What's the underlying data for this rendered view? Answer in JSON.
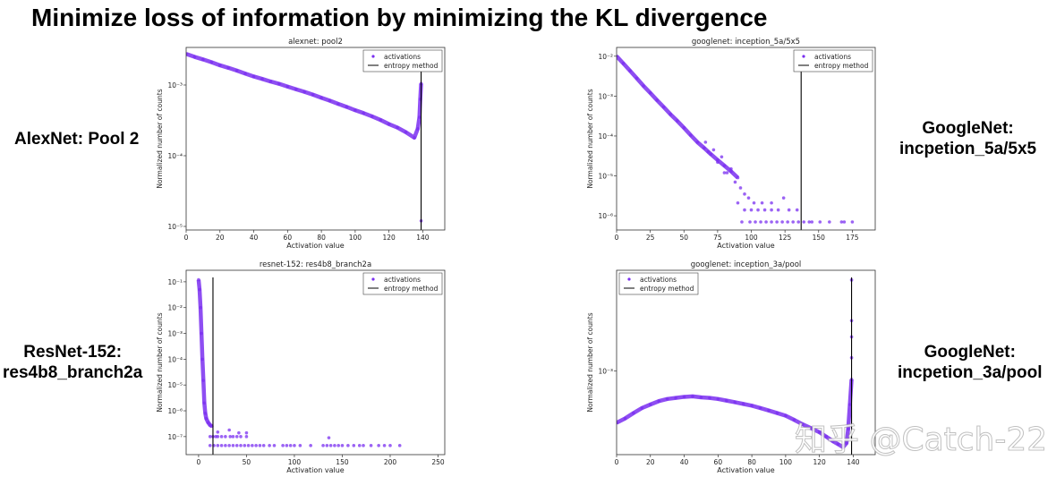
{
  "slide": {
    "title": "Minimize loss of information by minimizing the KL divergence",
    "labels": {
      "alexnet": [
        "AlexNet: Pool 2"
      ],
      "googlenet_5a": [
        "GoogleNet:",
        "incpetion_5a/5x5"
      ],
      "resnet": [
        "ResNet-152:",
        "res4b8_branch2a"
      ],
      "googlenet_3a": [
        "GoogleNet:",
        "incpetion_3a/pool"
      ]
    },
    "watermark": "知乎 @Catch-22"
  },
  "colors": {
    "activations": "#7a2ff0",
    "entropy": "#000000"
  },
  "chart_data": [
    {
      "type": "scatter",
      "title": "alexnet: pool2",
      "xlabel": "Activation value",
      "ylabel": "Normalized number of counts",
      "y_scale": "log",
      "xlim": [
        0,
        153
      ],
      "ylim": [
        8.9e-06,
        0.0034
      ],
      "xticks": [
        0,
        20,
        40,
        60,
        80,
        100,
        120,
        140
      ],
      "yticks": [
        0.001,
        0.0001,
        1e-05
      ],
      "ytick_labels": [
        "10⁻³",
        "10⁻⁴",
        "10⁻⁵"
      ],
      "legend": {
        "position": "top-right",
        "entries": [
          "activations",
          "entropy method"
        ]
      },
      "series": {
        "activations_curve": [
          [
            0,
            0.00275
          ],
          [
            5,
            0.0025
          ],
          [
            10,
            0.0023
          ],
          [
            15,
            0.0021
          ],
          [
            20,
            0.0019
          ],
          [
            25,
            0.00175
          ],
          [
            30,
            0.0016
          ],
          [
            35,
            0.00145
          ],
          [
            40,
            0.00132
          ],
          [
            45,
            0.00122
          ],
          [
            50,
            0.00112
          ],
          [
            55,
            0.00104
          ],
          [
            60,
            0.00095
          ],
          [
            65,
            0.00087
          ],
          [
            70,
            0.0008
          ],
          [
            75,
            0.00073
          ],
          [
            80,
            0.00066
          ],
          [
            85,
            0.0006
          ],
          [
            90,
            0.00054
          ],
          [
            95,
            0.00049
          ],
          [
            100,
            0.00044
          ],
          [
            105,
            0.0004
          ],
          [
            110,
            0.00036
          ],
          [
            115,
            0.00032
          ],
          [
            120,
            0.00028
          ],
          [
            125,
            0.00025
          ],
          [
            130,
            0.000215
          ],
          [
            135,
            0.00018
          ],
          [
            137,
            0.00024
          ],
          [
            138,
            0.00035
          ],
          [
            138.5,
            0.00063
          ],
          [
            139,
            0.00105
          ]
        ],
        "activations_points": [
          [
            139,
            1.2e-05
          ]
        ],
        "entropy_threshold": 139
      }
    },
    {
      "type": "scatter",
      "title": "googlenet: inception_5a/5x5",
      "xlabel": "Activation value",
      "ylabel": "Normalized number of counts",
      "y_scale": "log",
      "xlim": [
        0,
        192
      ],
      "ylim": [
        4.4e-07,
        0.0166
      ],
      "xticks": [
        0,
        25,
        50,
        75,
        100,
        125,
        150,
        175
      ],
      "yticks": [
        0.01,
        0.001,
        0.0001,
        1e-05,
        1e-06
      ],
      "ytick_labels": [
        "10⁻²",
        "10⁻³",
        "10⁻⁴",
        "10⁻⁵",
        "10⁻⁶"
      ],
      "legend": {
        "position": "top-right",
        "entries": [
          "activations",
          "entropy method"
        ]
      },
      "series": {
        "activations_curve": [
          [
            0,
            0.01
          ],
          [
            5,
            0.0066
          ],
          [
            10,
            0.0043
          ],
          [
            15,
            0.0028
          ],
          [
            20,
            0.0018
          ],
          [
            25,
            0.0012
          ],
          [
            30,
            0.00079
          ],
          [
            35,
            0.00053
          ],
          [
            40,
            0.00035
          ],
          [
            45,
            0.00024
          ],
          [
            50,
            0.00016
          ],
          [
            55,
            0.000105
          ],
          [
            60,
            7e-05
          ],
          [
            65,
            5e-05
          ],
          [
            70,
            3.5e-05
          ],
          [
            75,
            2.5e-05
          ],
          [
            80,
            1.8e-05
          ],
          [
            85,
            1.3e-05
          ],
          [
            90,
            9e-06
          ]
        ],
        "activations_points": [
          [
            66,
            7e-05
          ],
          [
            68,
            4e-05
          ],
          [
            72,
            4.5e-05
          ],
          [
            75,
            2.2e-05
          ],
          [
            78,
            3e-05
          ],
          [
            80,
            1.2e-05
          ],
          [
            82,
            1.2e-05
          ],
          [
            85,
            1.5e-05
          ],
          [
            88,
            7e-06
          ],
          [
            92,
            5e-06
          ],
          [
            95,
            3.5e-06
          ],
          [
            98,
            2.8e-06
          ],
          [
            90,
            2.1e-06
          ],
          [
            102,
            2.1e-06
          ],
          [
            108,
            2.1e-06
          ],
          [
            115,
            2.1e-06
          ],
          [
            124,
            2.8e-06
          ],
          [
            95,
            1.4e-06
          ],
          [
            100,
            1.4e-06
          ],
          [
            105,
            1.4e-06
          ],
          [
            110,
            1.4e-06
          ],
          [
            115,
            1.4e-06
          ],
          [
            120,
            1.4e-06
          ],
          [
            128,
            1.4e-06
          ],
          [
            134,
            1.4e-06
          ],
          [
            93,
            7e-07
          ],
          [
            99,
            7e-07
          ],
          [
            103,
            7e-07
          ],
          [
            107,
            7e-07
          ],
          [
            111,
            7e-07
          ],
          [
            115,
            7e-07
          ],
          [
            119,
            7e-07
          ],
          [
            123,
            7e-07
          ],
          [
            127,
            7e-07
          ],
          [
            131,
            7e-07
          ],
          [
            135,
            7e-07
          ],
          [
            139,
            7e-07
          ],
          [
            143,
            7e-07
          ],
          [
            145,
            7e-07
          ],
          [
            151,
            7e-07
          ],
          [
            158,
            7e-07
          ],
          [
            167,
            7e-07
          ],
          [
            169,
            7e-07
          ],
          [
            175,
            7e-07
          ],
          [
            137,
            0.011
          ]
        ],
        "entropy_threshold": 137
      }
    },
    {
      "type": "scatter",
      "title": "resnet-152: res4b8_branch2a",
      "xlabel": "Activation value",
      "ylabel": "Normalized number of counts",
      "y_scale": "log",
      "xlim": [
        -13,
        257
      ],
      "ylim": [
        2e-08,
        0.28
      ],
      "xticks": [
        0,
        50,
        100,
        150,
        200,
        250
      ],
      "yticks": [
        0.1,
        0.01,
        0.001,
        0.0001,
        1e-05,
        1e-06,
        1e-07
      ],
      "ytick_labels": [
        "10⁻¹",
        "10⁻²",
        "10⁻³",
        "10⁻⁴",
        "10⁻⁵",
        "10⁻⁶",
        "10⁻⁷"
      ],
      "legend": {
        "position": "top-right",
        "entries": [
          "activations",
          "entropy method"
        ]
      },
      "series": {
        "activations_curve": [
          [
            0,
            0.12
          ],
          [
            1,
            0.05
          ],
          [
            2,
            0.01
          ],
          [
            3,
            0.001
          ],
          [
            4,
            0.0001
          ],
          [
            5,
            1.5e-05
          ],
          [
            6,
            2e-06
          ],
          [
            7,
            8e-07
          ],
          [
            8,
            5e-07
          ],
          [
            10,
            3.5e-07
          ],
          [
            12,
            2.8e-07
          ],
          [
            14,
            2.5e-07
          ]
        ],
        "activations_points": [
          [
            12,
            1e-07
          ],
          [
            15,
            1e-07
          ],
          [
            18,
            1e-07
          ],
          [
            20,
            1e-07
          ],
          [
            24,
            1e-07
          ],
          [
            28,
            1e-07
          ],
          [
            33,
            1e-07
          ],
          [
            36,
            1e-07
          ],
          [
            40,
            1e-07
          ],
          [
            44,
            1e-07
          ],
          [
            50,
            1e-07
          ],
          [
            20,
            1.5e-07
          ],
          [
            32,
            1.8e-07
          ],
          [
            42,
            1.4e-07
          ],
          [
            50,
            1.4e-07
          ],
          [
            136,
            9e-08
          ],
          [
            12,
            4.5e-08
          ],
          [
            16,
            4.5e-08
          ],
          [
            20,
            4.5e-08
          ],
          [
            24,
            4.5e-08
          ],
          [
            28,
            4.5e-08
          ],
          [
            32,
            4.5e-08
          ],
          [
            36,
            4.5e-08
          ],
          [
            40,
            4.5e-08
          ],
          [
            44,
            4.5e-08
          ],
          [
            48,
            4.5e-08
          ],
          [
            52,
            4.5e-08
          ],
          [
            56,
            4.5e-08
          ],
          [
            60,
            4.5e-08
          ],
          [
            64,
            4.5e-08
          ],
          [
            68,
            4.5e-08
          ],
          [
            74,
            4.5e-08
          ],
          [
            79,
            4.5e-08
          ],
          [
            88,
            4.5e-08
          ],
          [
            92,
            4.5e-08
          ],
          [
            96,
            4.5e-08
          ],
          [
            100,
            4.5e-08
          ],
          [
            106,
            4.5e-08
          ],
          [
            117,
            4.5e-08
          ],
          [
            130,
            4.5e-08
          ],
          [
            134,
            4.5e-08
          ],
          [
            138,
            4.5e-08
          ],
          [
            142,
            4.5e-08
          ],
          [
            146,
            4.5e-08
          ],
          [
            150,
            4.5e-08
          ],
          [
            156,
            4.5e-08
          ],
          [
            162,
            4.5e-08
          ],
          [
            168,
            4.5e-08
          ],
          [
            172,
            4.5e-08
          ],
          [
            180,
            4.5e-08
          ],
          [
            188,
            4.5e-08
          ],
          [
            194,
            4.5e-08
          ],
          [
            200,
            4.5e-08
          ],
          [
            210,
            4.5e-08
          ]
        ],
        "entropy_threshold": 15
      }
    },
    {
      "type": "scatter",
      "title": "googlenet: inception_3a/pool",
      "xlabel": "Activation value",
      "ylabel": "Normalized number of counts",
      "y_scale": "log",
      "xlim": [
        0,
        153
      ],
      "ylim": [
        0.000316,
        0.004
      ],
      "xticks": [
        0,
        20,
        40,
        60,
        80,
        100,
        120,
        140
      ],
      "yticks": [
        0.001
      ],
      "ytick_labels": [
        "10⁻³"
      ],
      "legend": {
        "position": "top-left",
        "entries": [
          "activations",
          "entropy method"
        ]
      },
      "series": {
        "activations_curve": [
          [
            0,
            0.00049
          ],
          [
            5,
            0.00052
          ],
          [
            10,
            0.00056
          ],
          [
            15,
            0.0006
          ],
          [
            20,
            0.00063
          ],
          [
            25,
            0.00066
          ],
          [
            30,
            0.00068
          ],
          [
            35,
            0.00069
          ],
          [
            40,
            0.0007
          ],
          [
            45,
            0.000705
          ],
          [
            50,
            0.000695
          ],
          [
            55,
            0.00069
          ],
          [
            60,
            0.00068
          ],
          [
            65,
            0.000665
          ],
          [
            70,
            0.00065
          ],
          [
            75,
            0.000635
          ],
          [
            80,
            0.00062
          ],
          [
            85,
            0.0006
          ],
          [
            90,
            0.00058
          ],
          [
            95,
            0.00056
          ],
          [
            100,
            0.00054
          ],
          [
            105,
            0.00051
          ],
          [
            110,
            0.00048
          ],
          [
            115,
            0.000455
          ],
          [
            120,
            0.00043
          ],
          [
            124,
            0.000405
          ],
          [
            128,
            0.00038
          ],
          [
            131,
            0.000365
          ],
          [
            134,
            0.00035
          ],
          [
            136,
            0.00037
          ],
          [
            137,
            0.00045
          ],
          [
            138,
            0.00063
          ],
          [
            139,
            0.00089
          ]
        ],
        "activations_points": [
          [
            139,
            0.0012
          ],
          [
            139,
            0.0016
          ],
          [
            139,
            0.002
          ],
          [
            139,
            0.0035
          ]
        ],
        "entropy_threshold": 139
      }
    }
  ]
}
